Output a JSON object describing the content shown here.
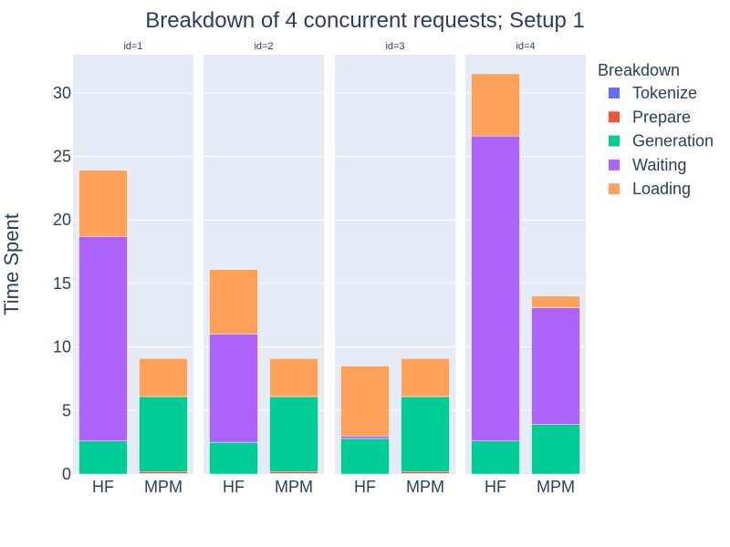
{
  "chart_data": {
    "type": "bar",
    "stacked": true,
    "title": "Breakdown of 4 concurrent requests; Setup 1",
    "ylabel": "Time Spent",
    "ylim": [
      0,
      33
    ],
    "yticks": [
      0,
      5,
      10,
      15,
      20,
      25,
      30
    ],
    "grid": true,
    "legend": {
      "title": "Breakdown",
      "placement": "right"
    },
    "categories": [
      "HF",
      "MPM"
    ],
    "series": [
      {
        "name": "Tokenize",
        "color": "#636efa"
      },
      {
        "name": "Prepare",
        "color": "#ef553b"
      },
      {
        "name": "Generation",
        "color": "#00cc96"
      },
      {
        "name": "Waiting",
        "color": "#ab63fa"
      },
      {
        "name": "Loading",
        "color": "#ffa15a"
      }
    ],
    "facets": [
      {
        "label": "id=1",
        "values": {
          "HF": [
            0,
            0,
            2.6,
            16.1,
            5.2
          ],
          "MPM": [
            0.05,
            0.15,
            5.9,
            0,
            3.0
          ]
        }
      },
      {
        "label": "id=2",
        "values": {
          "HF": [
            0,
            0,
            2.5,
            8.5,
            5.1
          ],
          "MPM": [
            0.05,
            0.15,
            5.9,
            0,
            3.0
          ]
        }
      },
      {
        "label": "id=3",
        "values": {
          "HF": [
            0,
            0,
            2.8,
            0.2,
            5.5
          ],
          "MPM": [
            0.05,
            0.15,
            5.9,
            0,
            3.0
          ]
        }
      },
      {
        "label": "id=4",
        "values": {
          "HF": [
            0,
            0,
            2.6,
            24.0,
            4.9
          ],
          "MPM": [
            0,
            0,
            3.9,
            9.2,
            0.9
          ]
        }
      }
    ]
  }
}
